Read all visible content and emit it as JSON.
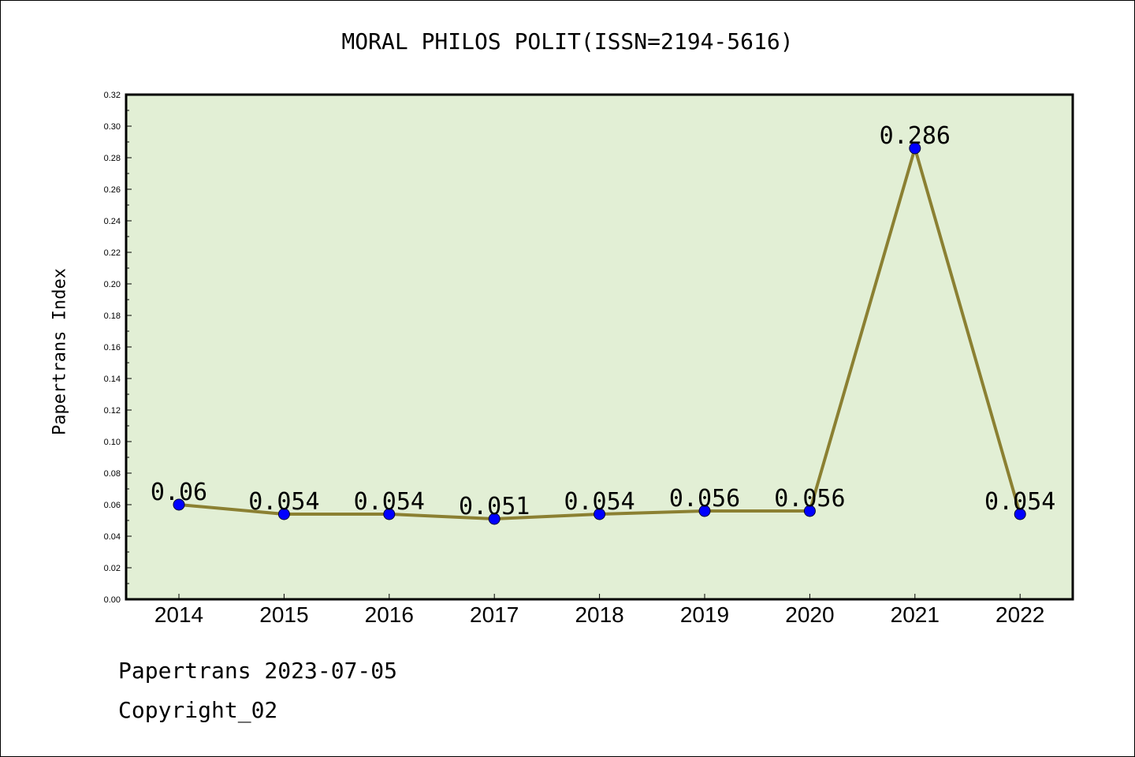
{
  "chart_data": {
    "type": "line",
    "title": "MORAL PHILOS POLIT(ISSN=2194-5616)",
    "xlabel": "",
    "ylabel": "Papertrans Index",
    "categories": [
      "2014",
      "2015",
      "2016",
      "2017",
      "2018",
      "2019",
      "2020",
      "2021",
      "2022"
    ],
    "series": [
      {
        "values": [
          0.06,
          0.054,
          0.054,
          0.051,
          0.054,
          0.056,
          0.056,
          0.286,
          0.054
        ]
      }
    ],
    "data_labels": [
      "0.06",
      "0.054",
      "0.054",
      "0.051",
      "0.054",
      "0.056",
      "0.056",
      "0.286",
      "0.054"
    ],
    "ylim": [
      0,
      0.32
    ],
    "yticks": [
      "0.00",
      "0.02",
      "0.04",
      "0.06",
      "0.08",
      "0.10",
      "0.12",
      "0.14",
      "0.16",
      "0.18",
      "0.20",
      "0.22",
      "0.24",
      "0.26",
      "0.28",
      "0.30",
      "0.32"
    ],
    "grid": false,
    "legend": "none",
    "colors": {
      "plot_background": "#e2efd5",
      "line": "#8b8032",
      "marker": "#0000ff"
    }
  },
  "footer": {
    "line1": "Papertrans 2023-07-05",
    "line2": "Copyright_02"
  }
}
